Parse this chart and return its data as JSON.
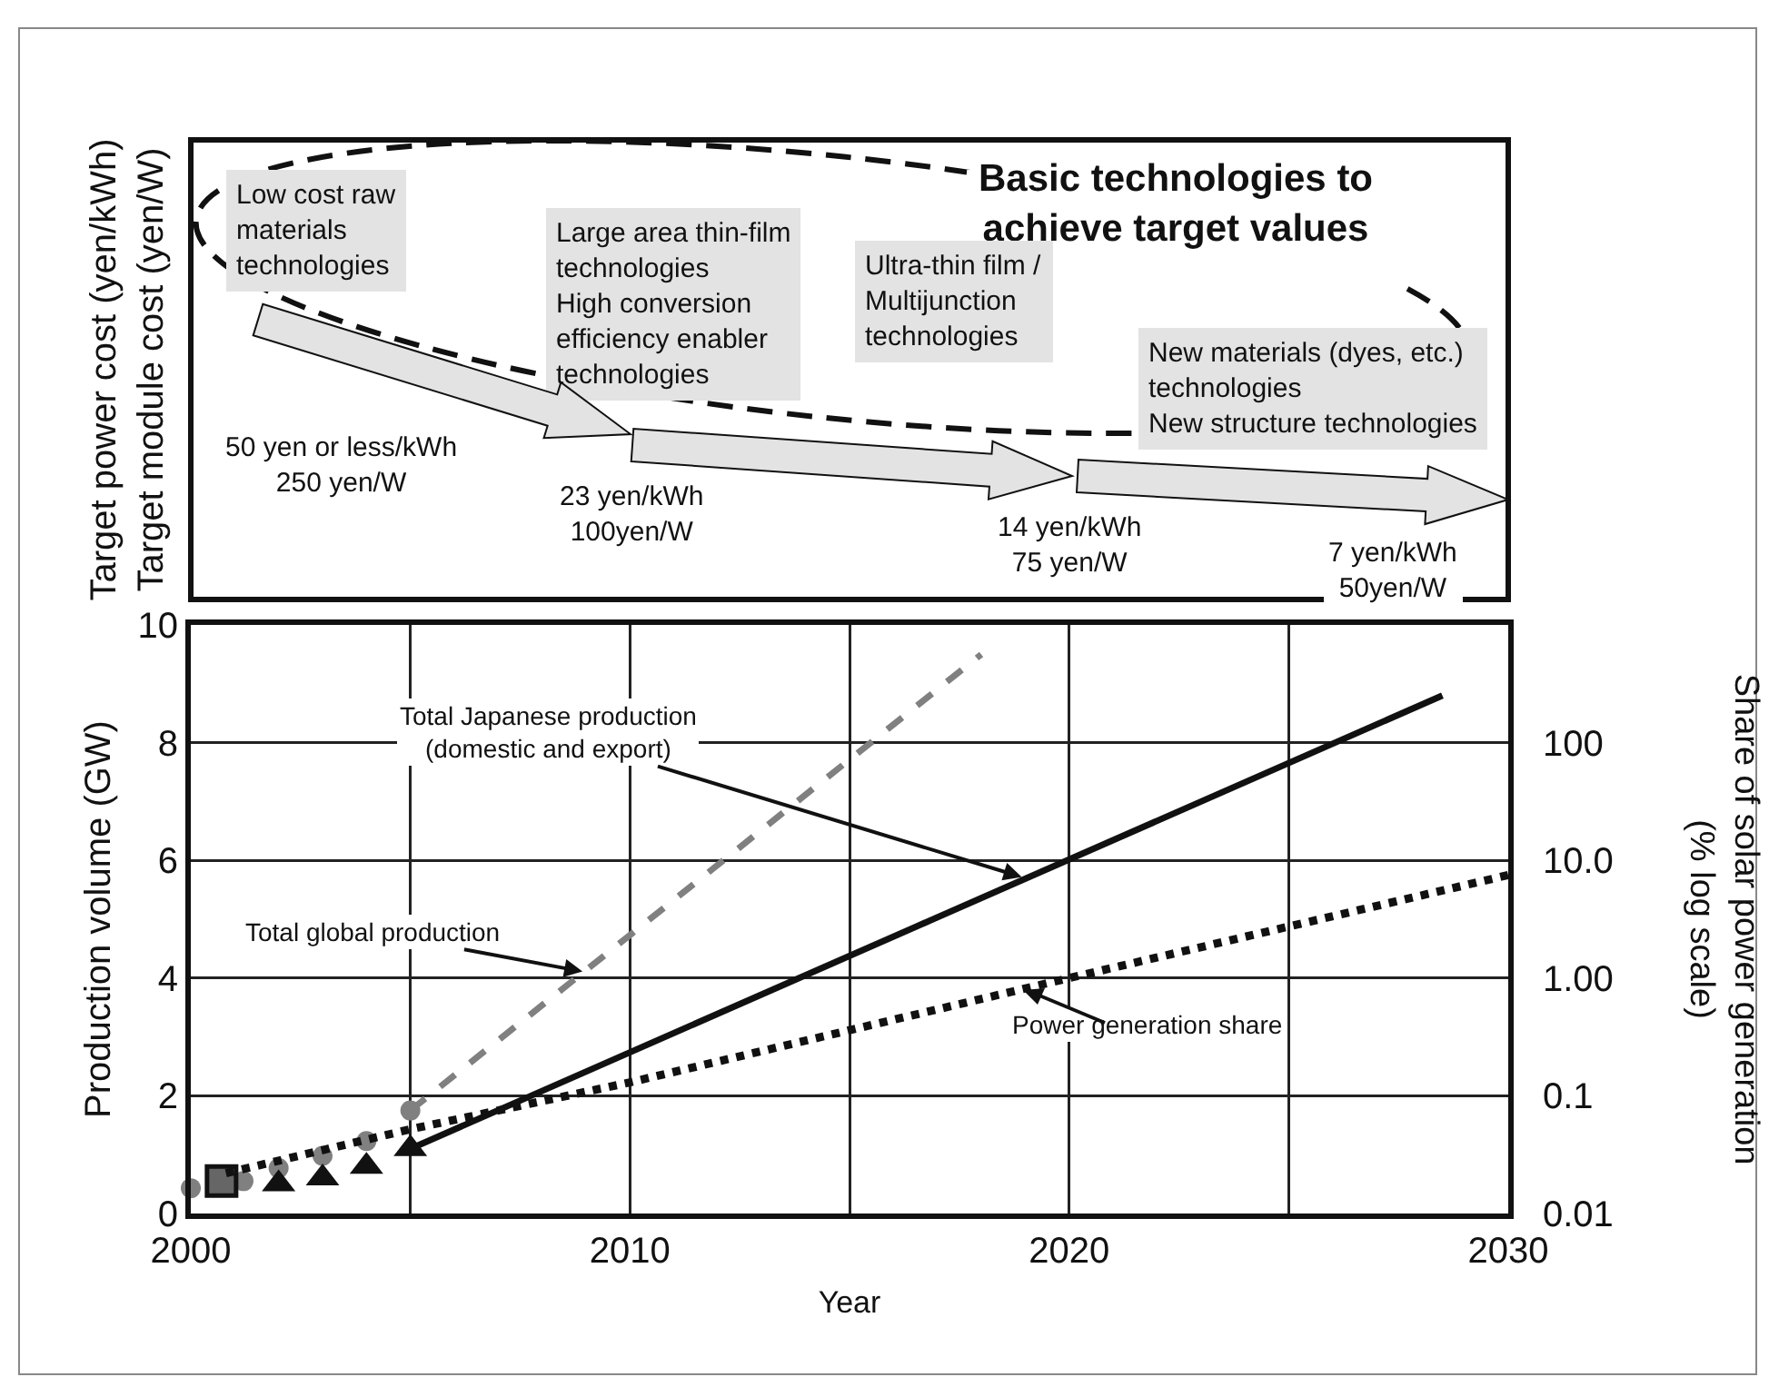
{
  "chart_data": [
    {
      "type": "other",
      "title": "Basic technologies to\nachieve target values",
      "ylabel": "Target power cost (yen/kWh)\nTarget module cost (yen/W)",
      "annotations": [
        "Low cost raw\nmaterials\ntechnologies",
        "Large area thin-film\ntechnologies\nHigh conversion\nefficiency enabler\ntechnologies",
        "Ultra-thin film /\nMultijunction\ntechnologies",
        "New materials (dyes, etc.)\ntechnologies\nNew structure technologies",
        "50 yen or less/kWh\n250 yen/W",
        "23 yen/kWh\n100yen/W",
        "14 yen/kWh\n75 yen/W",
        "7 yen/kWh\n50yen/W"
      ]
    },
    {
      "type": "line",
      "xlabel": "Year",
      "ylabel": "Production volume (GW)",
      "y2label": "Share of solar power generation\n(% log scale)",
      "xlim": [
        2000,
        2030
      ],
      "xticks": [
        2000,
        {
          "value": 2005,
          "label": null
        },
        2010,
        {
          "value": 2015,
          "label": null
        },
        2020,
        {
          "value": 2025,
          "label": null
        },
        2030
      ],
      "ylim": [
        0,
        10
      ],
      "yticks": [
        0,
        2,
        4,
        6,
        8,
        10
      ],
      "y2lim": [
        0.01,
        1000
      ],
      "y2ticks": [
        {
          "value": 0.01,
          "label": "0.01"
        },
        0.1,
        {
          "value": 1,
          "label": "1.00"
        },
        {
          "value": 10,
          "label": "10.0"
        },
        100
      ],
      "log": "y2",
      "grid": true,
      "series": [
        {
          "type": "line",
          "color": "#808080",
          "line_style": "dashed",
          "marker": "none",
          "x": [
            2005,
            2018
          ],
          "values": [
            1.75,
            9.5
          ]
        },
        {
          "type": "line",
          "color": "#111111",
          "line_style": "solid",
          "marker": "none",
          "x": [
            2005,
            2028.5
          ],
          "values": [
            1.1,
            8.8
          ]
        },
        {
          "type": "line",
          "color": "#111111",
          "line_style": "dotted",
          "marker": "none",
          "axis": "y2",
          "x": [
            2000.8,
            2005,
            2010,
            2020,
            2030
          ],
          "values": [
            0.022,
            0.052,
            0.13,
            1.0,
            7.5
          ]
        },
        {
          "type": "scatter",
          "color": "#808080",
          "marker": "circle",
          "x": [
            2000,
            2001.2,
            2002,
            2003,
            2004,
            2005
          ],
          "values": [
            0.43,
            0.55,
            0.77,
            0.98,
            1.23,
            1.75
          ]
        },
        {
          "type": "scatter",
          "color": "#111111",
          "marker": "triangle",
          "x": [
            2002,
            2003,
            2004,
            2005
          ],
          "values": [
            0.5,
            0.6,
            0.8,
            1.1
          ]
        },
        {
          "type": "scatter",
          "color": "#666666",
          "marker": "square",
          "x": [
            2000.7
          ],
          "values": [
            0.55
          ]
        }
      ],
      "annotations": [
        {
          "text": "Total Japanese production\n(domestic and export)",
          "x": 2019,
          "y": 5.7
        },
        {
          "text": "Total global production",
          "x": 2009,
          "y": 4.1
        },
        "Power generation share"
      ]
    }
  ]
}
